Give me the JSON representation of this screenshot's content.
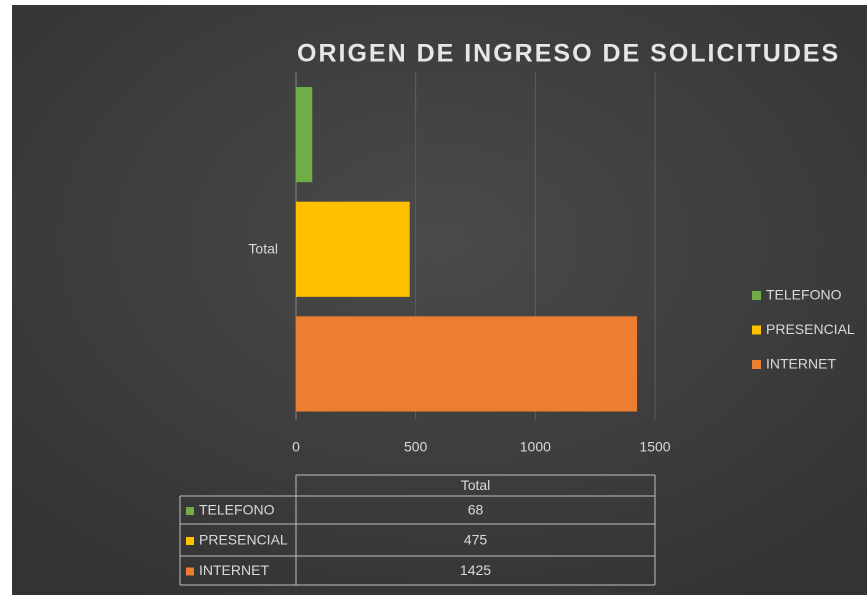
{
  "chart_data": {
    "type": "bar",
    "orientation": "horizontal",
    "title": "ORIGEN DE INGRESO DE SOLICITUDES",
    "categories": [
      "Total"
    ],
    "series": [
      {
        "name": "TELEFONO",
        "color": "#70ad47",
        "values": [
          68
        ]
      },
      {
        "name": "PRESENCIAL",
        "color": "#ffc000",
        "values": [
          475
        ]
      },
      {
        "name": "INTERNET",
        "color": "#ed7d31",
        "values": [
          1425
        ]
      }
    ],
    "xlim": [
      0,
      1500
    ],
    "xticks": [
      0,
      500,
      1000,
      1500
    ],
    "grid": true,
    "legend": "right",
    "data_table": true
  }
}
